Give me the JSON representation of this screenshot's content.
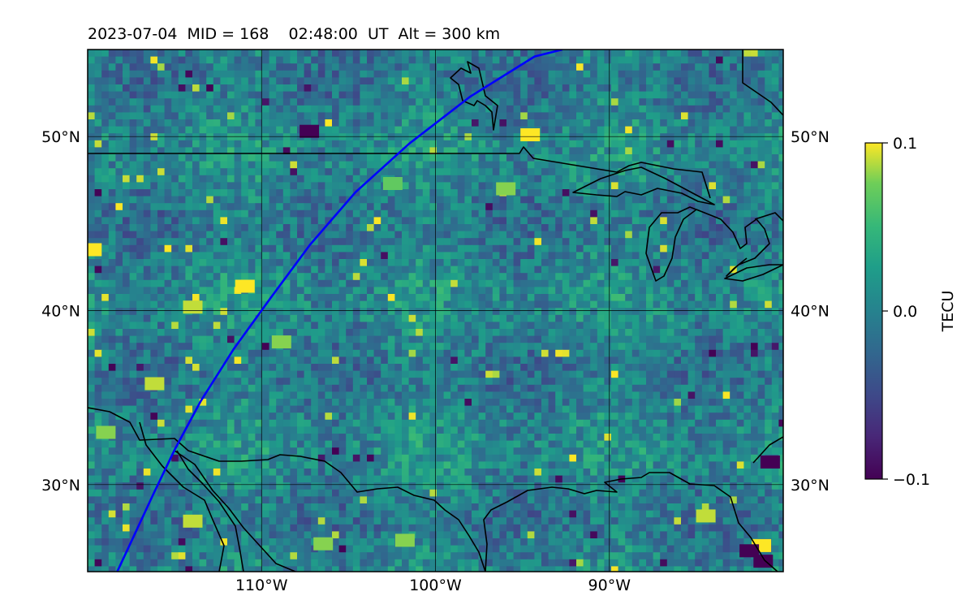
{
  "chart_data": {
    "type": "heatmap",
    "title": "2023-07-04  MID = 168    02:48:00  UT  Alt = 300 km",
    "map": {
      "lon_range": [
        -120,
        -80
      ],
      "lat_range": [
        25,
        55
      ],
      "lon_ticks": [
        -110,
        -100,
        -90
      ],
      "lon_tick_labels": [
        "110°W",
        "100°W",
        "90°W"
      ],
      "lat_ticks": [
        30,
        40,
        50
      ],
      "lat_tick_labels": [
        "30°N",
        "40°N",
        "50°N"
      ],
      "grid": true,
      "coastlines": true,
      "borders": true
    },
    "colorbar": {
      "label": "TECU",
      "colormap": "viridis",
      "min": -0.1,
      "max": 0.1,
      "ticks": [
        -0.1,
        0.0,
        0.1
      ],
      "tick_labels": [
        "−0.1",
        "0.0",
        "0.1"
      ],
      "placement": "right"
    },
    "satellite_track": {
      "color": "#0000ff",
      "points": [
        [
          -118.3,
          25.0
        ],
        [
          -117.6,
          26.5
        ],
        [
          -116.2,
          29.5
        ],
        [
          -115.0,
          32.0
        ],
        [
          -113.5,
          34.8
        ],
        [
          -111.6,
          37.8
        ],
        [
          -109.5,
          40.7
        ],
        [
          -107.2,
          43.8
        ],
        [
          -104.6,
          46.8
        ],
        [
          -101.5,
          49.6
        ],
        [
          -98.0,
          52.3
        ],
        [
          -94.3,
          54.6
        ],
        [
          -92.7,
          55.0
        ]
      ]
    },
    "hotspots": [
      {
        "lon": -111.0,
        "lat": 41.4,
        "value": 0.1
      },
      {
        "lon": -114.0,
        "lat": 27.9,
        "value": 0.09
      },
      {
        "lon": -84.5,
        "lat": 28.2,
        "value": 0.09
      },
      {
        "lon": -81.3,
        "lat": 26.5,
        "value": 0.1
      },
      {
        "lon": -94.6,
        "lat": 50.1,
        "value": 0.1
      },
      {
        "lon": -108.9,
        "lat": 38.2,
        "value": 0.08
      },
      {
        "lon": -107.3,
        "lat": 50.3,
        "value": -0.1
      },
      {
        "lon": -119.8,
        "lat": 43.5,
        "value": 0.1
      },
      {
        "lon": -119.0,
        "lat": 33.0,
        "value": 0.08
      },
      {
        "lon": -116.2,
        "lat": 35.8,
        "value": 0.09
      },
      {
        "lon": -114.0,
        "lat": 40.2,
        "value": 0.09
      },
      {
        "lon": -102.5,
        "lat": 47.3,
        "value": 0.07
      },
      {
        "lon": -96.0,
        "lat": 47.0,
        "value": 0.08
      },
      {
        "lon": -82.0,
        "lat": 26.2,
        "value": -0.1
      },
      {
        "lon": -81.2,
        "lat": 25.6,
        "value": -0.1
      },
      {
        "lon": -80.8,
        "lat": 31.3,
        "value": -0.1
      },
      {
        "lon": -101.8,
        "lat": 26.8,
        "value": 0.08
      },
      {
        "lon": -106.5,
        "lat": 26.6,
        "value": 0.08
      }
    ]
  }
}
